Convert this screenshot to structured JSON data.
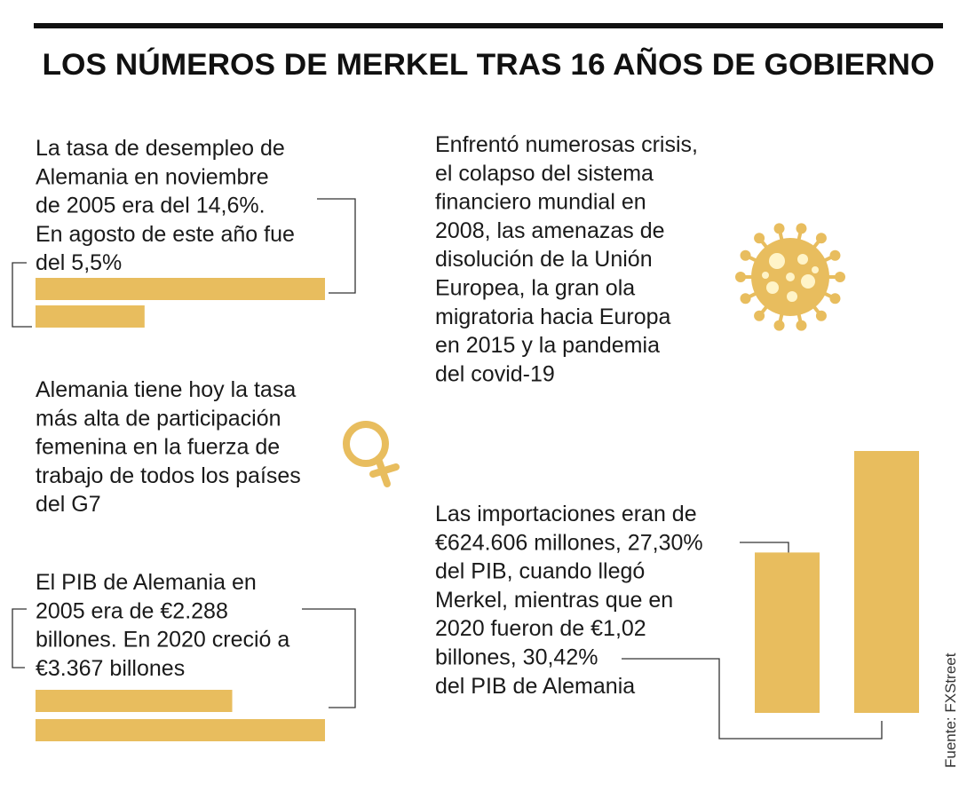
{
  "title": "LOS NÚMEROS DE MERKEL TRAS 16 AÑOS DE GOBIERNO",
  "source": "Fuente: FXStreet",
  "unemployment": {
    "text": [
      "La tasa de desempleo de",
      "Alemania en noviembre",
      "de 2005 era del 14,6%.",
      "En agosto de este año fue",
      "del 5,5%"
    ],
    "values": [
      14.6,
      5.5
    ]
  },
  "women": {
    "text": [
      "Alemania tiene hoy la tasa",
      "más alta de participación",
      "femenina en la fuerza de",
      "trabajo de todos los países",
      "del G7"
    ]
  },
  "gdp": {
    "text": [
      "El PIB de Alemania en",
      "2005 era de €2.288",
      "billones. En 2020 creció a",
      "€3.367 billones"
    ],
    "values": [
      2288,
      3367
    ]
  },
  "crises": {
    "text": [
      "Enfrentó numerosas crisis,",
      "el colapso del sistema",
      "financiero mundial en",
      "2008, las amenazas de",
      "disolución de la Unión",
      "Europea, la gran ola",
      "migratoria hacia Europa",
      "en 2015 y la pandemia",
      "del covid-19"
    ]
  },
  "imports": {
    "text": [
      "Las importaciones eran de",
      "€624.606 millones, 27,30%",
      "del PIB, cuando llegó",
      "Merkel, mientras que en",
      "2020 fueron de €1,02",
      "billones, 30,42%",
      "del PIB de Alemania"
    ],
    "values": [
      624606,
      1020000
    ]
  }
}
